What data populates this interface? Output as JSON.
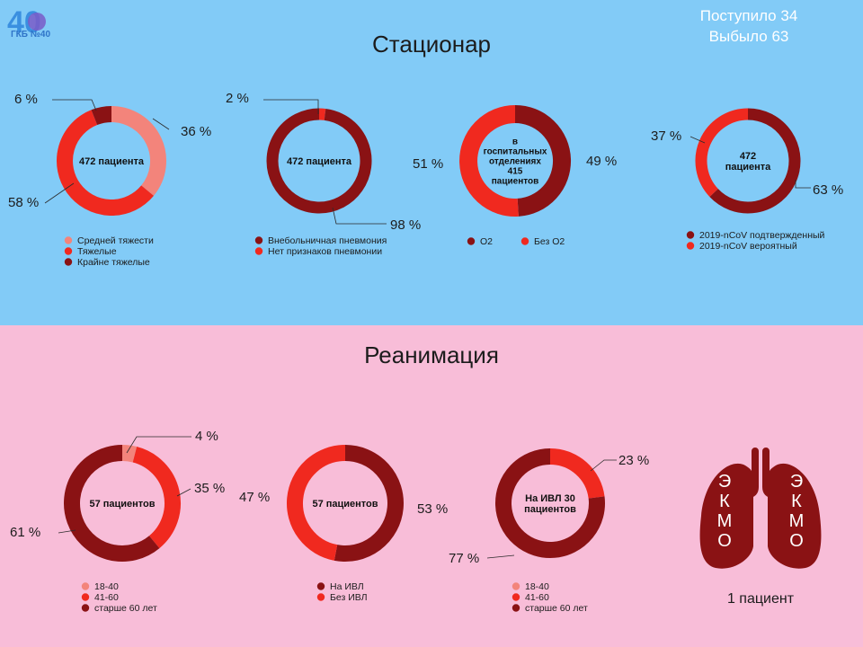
{
  "logo": {
    "number": "40",
    "text": "ГКБ №40"
  },
  "stats": {
    "admitted": "Поступило 34",
    "discharged": "Выбыло 63"
  },
  "sections": {
    "hospital": "Стационар",
    "icu": "Реанимация"
  },
  "colors": {
    "dark": "#8a1214",
    "red": "#f0291f",
    "pink": "#f3847b",
    "top_bg": "#82cbf7",
    "bottom_bg": "#f8bdd8"
  },
  "chart_data": [
    {
      "type": "pie",
      "donut": true,
      "center_label": [
        "472 пациента"
      ],
      "slices": [
        {
          "label": "Средней тяжести",
          "value": 36,
          "color": "#f3847b",
          "pct_label": "36 %"
        },
        {
          "label": "Тяжелые",
          "value": 58,
          "color": "#f0291f",
          "pct_label": "58 %"
        },
        {
          "label": "Крайне тяжелые",
          "value": 6,
          "color": "#8a1214",
          "pct_label": "6 %"
        }
      ]
    },
    {
      "type": "pie",
      "donut": true,
      "center_label": [
        "472 пациента"
      ],
      "slices": [
        {
          "label": "Нет признаков пневмонии",
          "value": 2,
          "color": "#f0291f",
          "pct_label": "2 %"
        },
        {
          "label": "Внебольничная пневмония",
          "value": 98,
          "color": "#8a1214",
          "pct_label": "98 %"
        }
      ],
      "legend_order": [
        1,
        0
      ]
    },
    {
      "type": "pie",
      "donut": true,
      "center_label": [
        "в",
        "госпитальных",
        "отделениях",
        "415",
        "пациентов"
      ],
      "slices": [
        {
          "label": "O2",
          "value": 49,
          "color": "#8a1214",
          "pct_label": "49 %"
        },
        {
          "label": "Без O2",
          "value": 51,
          "color": "#f0291f",
          "pct_label": "51 %"
        }
      ]
    },
    {
      "type": "pie",
      "donut": true,
      "center_label": [
        "472",
        "пациента"
      ],
      "slices": [
        {
          "label": "2019-nCoV подтвержденный",
          "value": 63,
          "color": "#8a1214",
          "pct_label": "63 %"
        },
        {
          "label": "2019-nCoV вероятный",
          "value": 37,
          "color": "#f0291f",
          "pct_label": "37 %"
        }
      ]
    },
    {
      "type": "pie",
      "donut": true,
      "center_label": [
        "57 пациентов"
      ],
      "slices": [
        {
          "label": "18-40",
          "value": 4,
          "color": "#f3847b",
          "pct_label": "4 %"
        },
        {
          "label": "41-60",
          "value": 35,
          "color": "#f0291f",
          "pct_label": "35 %"
        },
        {
          "label": "старше 60 лет",
          "value": 61,
          "color": "#8a1214",
          "pct_label": "61 %"
        }
      ]
    },
    {
      "type": "pie",
      "donut": true,
      "center_label": [
        "57 пациентов"
      ],
      "slices": [
        {
          "label": "На ИВЛ",
          "value": 53,
          "color": "#8a1214",
          "pct_label": "53 %"
        },
        {
          "label": "Без ИВЛ",
          "value": 47,
          "color": "#f0291f",
          "pct_label": "47 %"
        }
      ]
    },
    {
      "type": "pie",
      "donut": true,
      "center_label": [
        "На ИВЛ 30",
        "пациентов"
      ],
      "slices": [
        {
          "label": "18-40",
          "value": 0,
          "color": "#f3847b",
          "pct_label": ""
        },
        {
          "label": "41-60",
          "value": 23,
          "color": "#f0291f",
          "pct_label": "23 %"
        },
        {
          "label": "старше 60 лет",
          "value": 77,
          "color": "#8a1214",
          "pct_label": "77 %"
        }
      ]
    }
  ],
  "ekmo": {
    "letters": [
      "Э",
      "К",
      "М",
      "О"
    ],
    "caption": "1 пациент",
    "color": "#8a1214"
  }
}
